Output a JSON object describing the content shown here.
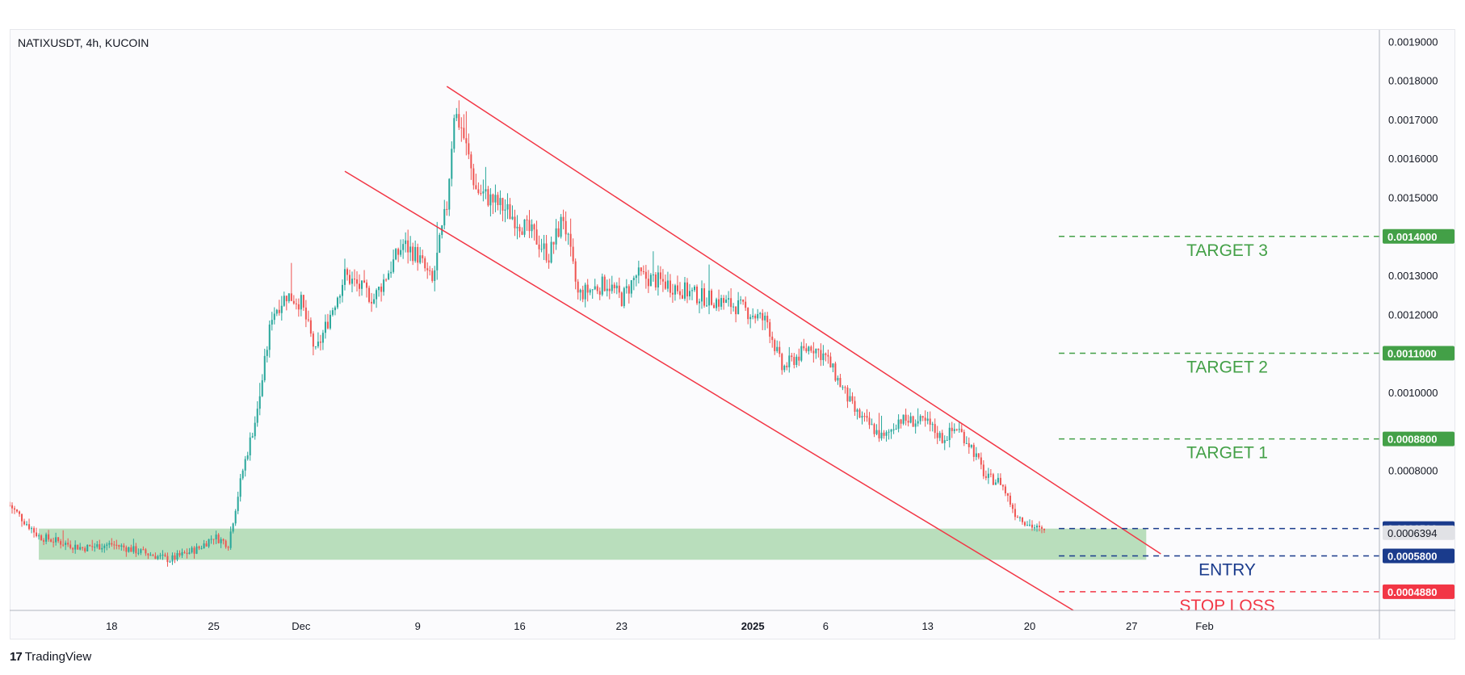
{
  "header": {
    "symbol_title": "NATIXUSDT, 4h, KUCOIN"
  },
  "brand": {
    "logo": "17",
    "name": "TradingView"
  },
  "chart_data": {
    "type": "candlestick",
    "symbol": "NATIXUSDT",
    "interval": "4h",
    "exchange": "KUCOIN",
    "ylim": [
      0.00044,
      0.00193
    ],
    "y_ticks": [
      "0.0019000",
      "0.0018000",
      "0.0017000",
      "0.0016000",
      "0.0015000",
      "0.0013000",
      "0.0012000",
      "0.0010000",
      "0.0008000"
    ],
    "x_ticks": [
      {
        "label": "18",
        "date": "2024-11-18"
      },
      {
        "label": "25",
        "date": "2024-11-25"
      },
      {
        "label": "Dec",
        "date": "2024-12-01"
      },
      {
        "label": "9",
        "date": "2024-12-09"
      },
      {
        "label": "16",
        "date": "2024-12-16"
      },
      {
        "label": "23",
        "date": "2024-12-23"
      },
      {
        "label": "2025",
        "date": "2025-01-01",
        "bold": true
      },
      {
        "label": "6",
        "date": "2025-01-06"
      },
      {
        "label": "13",
        "date": "2025-01-13"
      },
      {
        "label": "20",
        "date": "2025-01-20"
      },
      {
        "label": "27",
        "date": "2025-01-27"
      },
      {
        "label": "Feb",
        "date": "2025-02-01"
      }
    ],
    "x_range": [
      "2024-11-11",
      "2025-02-13"
    ],
    "price_path": [
      [
        "2024-11-11",
        0.00071
      ],
      [
        "2024-11-13",
        0.00063
      ],
      [
        "2024-11-14",
        0.00062
      ],
      [
        "2024-11-16",
        0.0006
      ],
      [
        "2024-11-18",
        0.00061
      ],
      [
        "2024-11-20",
        0.00059
      ],
      [
        "2024-11-22",
        0.00057
      ],
      [
        "2024-11-24",
        0.0006
      ],
      [
        "2024-11-25",
        0.00063
      ],
      [
        "2024-11-26",
        0.00061
      ],
      [
        "2024-11-27",
        0.0008
      ],
      [
        "2024-11-28",
        0.00095
      ],
      [
        "2024-11-29",
        0.0012
      ],
      [
        "2024-11-30",
        0.00125
      ],
      [
        "2024-12-01",
        0.00123
      ],
      [
        "2024-12-02",
        0.0011
      ],
      [
        "2024-12-03",
        0.0012
      ],
      [
        "2024-12-04",
        0.0013
      ],
      [
        "2024-12-06",
        0.00124
      ],
      [
        "2024-12-08",
        0.00138
      ],
      [
        "2024-12-09",
        0.00135
      ],
      [
        "2024-12-10",
        0.00128
      ],
      [
        "2024-12-11",
        0.00148
      ],
      [
        "2024-12-11T12",
        0.00172
      ],
      [
        "2024-12-12",
        0.00168
      ],
      [
        "2024-12-13",
        0.00152
      ],
      [
        "2024-12-15",
        0.00147
      ],
      [
        "2024-12-17",
        0.0014
      ],
      [
        "2024-12-18",
        0.00135
      ],
      [
        "2024-12-19",
        0.00145
      ],
      [
        "2024-12-20",
        0.00125
      ],
      [
        "2024-12-22",
        0.00128
      ],
      [
        "2024-12-23",
        0.00124
      ],
      [
        "2024-12-24",
        0.0013
      ],
      [
        "2024-12-26",
        0.00128
      ],
      [
        "2024-12-28",
        0.00125
      ],
      [
        "2024-12-31",
        0.00122
      ],
      [
        "2025-01-02",
        0.00118
      ],
      [
        "2025-01-03",
        0.00106
      ],
      [
        "2025-01-05",
        0.00112
      ],
      [
        "2025-01-06",
        0.00109
      ],
      [
        "2025-01-08",
        0.00095
      ],
      [
        "2025-01-10",
        0.00088
      ],
      [
        "2025-01-11",
        0.00093
      ],
      [
        "2025-01-13",
        0.00092
      ],
      [
        "2025-01-14",
        0.00088
      ],
      [
        "2025-01-15",
        0.00091
      ],
      [
        "2025-01-16",
        0.00086
      ],
      [
        "2025-01-17",
        0.00078
      ],
      [
        "2025-01-18",
        0.00077
      ],
      [
        "2025-01-19",
        0.00069
      ],
      [
        "2025-01-20",
        0.00066
      ],
      [
        "2025-01-21",
        0.00064
      ]
    ],
    "bullish_color": "#26a69a",
    "bearish_color": "#ef5350",
    "trendlines": [
      {
        "from": [
          "2024-12-11",
          0.001785
        ],
        "to": [
          "2025-01-29",
          0.000585
        ],
        "color": "#f23645"
      },
      {
        "from": [
          "2024-12-04",
          0.001567
        ],
        "to": [
          "2025-01-23",
          0.00044
        ],
        "color": "#f23645"
      }
    ],
    "zone": {
      "from": "2024-11-13",
      "to": "2025-01-28",
      "low": 0.00057,
      "high": 0.00065,
      "color": "#b5dcb8"
    },
    "levels": [
      {
        "label": "TARGET 3",
        "value": 0.0014,
        "price_label": "0.0014000",
        "color": "#43a047"
      },
      {
        "label": "TARGET 2",
        "value": 0.0011,
        "price_label": "0.0011000",
        "color": "#43a047"
      },
      {
        "label": "TARGET 1",
        "value": 0.00088,
        "price_label": "0.0008800",
        "color": "#43a047"
      },
      {
        "label": "",
        "value": 0.00065,
        "price_label": "0.0006500",
        "color": "#1a3b8c"
      },
      {
        "label": "ENTRY",
        "value": 0.00058,
        "price_label": "0.0005800",
        "color": "#1a3b8c"
      },
      {
        "label": "STOP LOSS",
        "value": 0.000488,
        "price_label": "0.0004880",
        "color": "#f23645"
      }
    ],
    "level_start": "2025-01-22",
    "current_price": {
      "value": 0.0006394,
      "label": "0.0006394"
    }
  }
}
